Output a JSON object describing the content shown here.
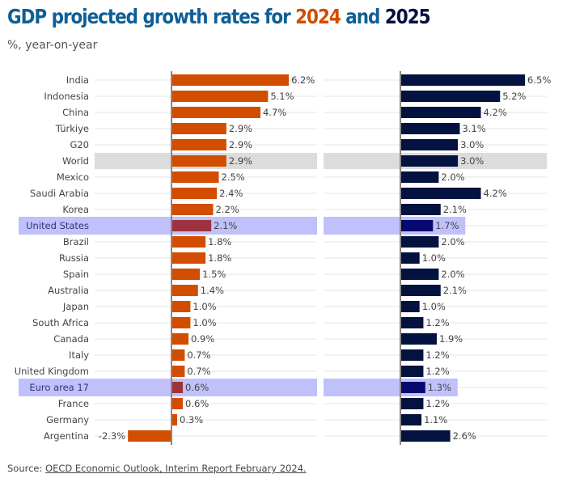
{
  "chart_data": {
    "type": "bar",
    "orientation": "horizontal",
    "title_parts": [
      "GDP projected growth rates for ",
      "2024",
      " and ",
      "2025"
    ],
    "subtitle": "%, year-on-year",
    "categories": [
      "India",
      "Indonesia",
      "China",
      "Türkiye",
      "G20",
      "World",
      "Mexico",
      "Saudi Arabia",
      "Korea",
      "United States",
      "Brazil",
      "Russia",
      "Spain",
      "Australia",
      "Japan",
      "South Africa",
      "Canada",
      "Italy",
      "United Kingdom",
      "Euro area 17",
      "France",
      "Germany",
      "Argentina"
    ],
    "series": [
      {
        "name": "2024",
        "color": "#d24d00",
        "highlight_color": "#9e3340",
        "values": [
          6.2,
          5.1,
          4.7,
          2.9,
          2.9,
          2.9,
          2.5,
          2.4,
          2.2,
          2.1,
          1.8,
          1.8,
          1.5,
          1.4,
          1.0,
          1.0,
          0.9,
          0.7,
          0.7,
          0.6,
          0.6,
          0.3,
          -2.3
        ]
      },
      {
        "name": "2025",
        "color": "#041240",
        "highlight_color": "#060a6e",
        "values": [
          6.5,
          5.2,
          4.2,
          3.1,
          3.0,
          3.0,
          2.0,
          4.2,
          2.1,
          1.7,
          2.0,
          1.0,
          2.0,
          2.1,
          1.0,
          1.2,
          1.9,
          1.2,
          1.2,
          1.3,
          1.2,
          1.1,
          2.6
        ]
      }
    ],
    "value_format": "%",
    "highlighted": {
      "gray": [
        "World"
      ],
      "blue": [
        "United States",
        "Euro area 17"
      ]
    },
    "colors": {
      "title": "#0f5f96",
      "gray_band": "#dcdcdc",
      "blue_band": "#c0c0fb",
      "axis": "#888888",
      "grid": "#e6e6e6"
    },
    "source_prefix": "Source: ",
    "source_link": "OECD Economic Outlook, Interim Report February 2024."
  }
}
